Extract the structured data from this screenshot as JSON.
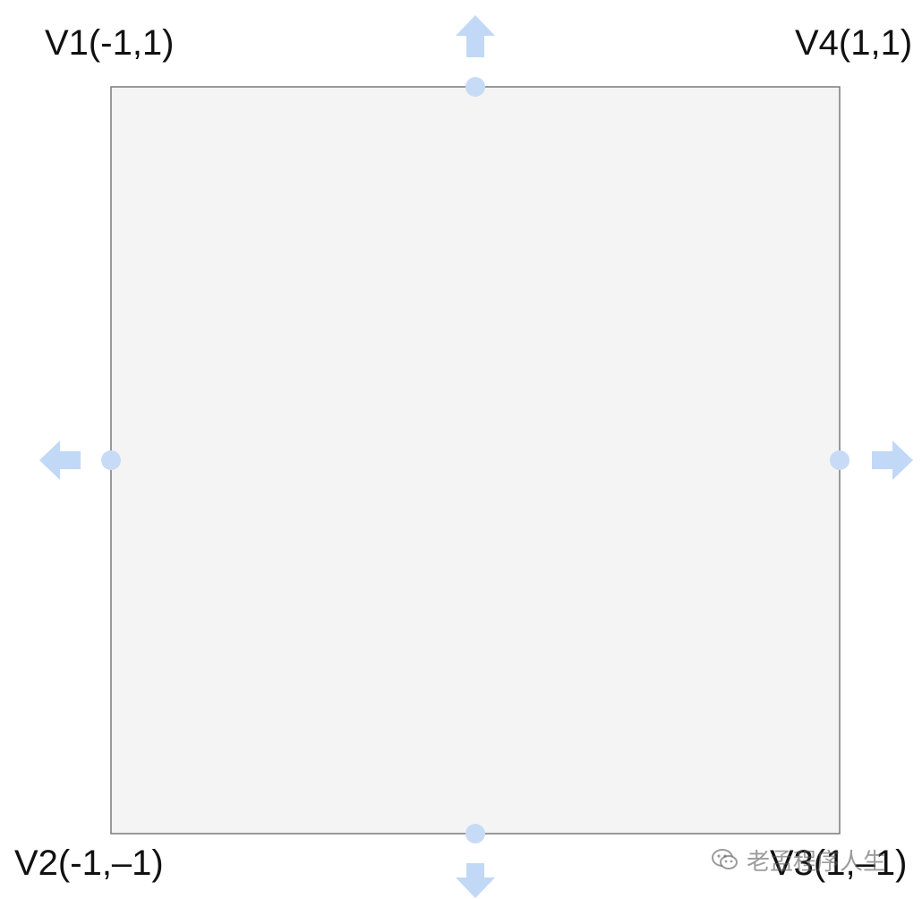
{
  "diagram": {
    "vertices": [
      {
        "id": "v1",
        "label": "V1(-1,1)"
      },
      {
        "id": "v2",
        "label": "V2(-1,–1)"
      },
      {
        "id": "v3",
        "label": "V3(1,–1)"
      },
      {
        "id": "v4",
        "label": "V4(1,1)"
      }
    ],
    "expand_directions": [
      "up",
      "down",
      "left",
      "right"
    ],
    "colors": {
      "square_fill": "#f4f4f4",
      "square_stroke": "#7a7a7a",
      "handle": "#c7dbf7",
      "arrow": "#c2d8f7",
      "text": "#111111"
    }
  },
  "watermark": {
    "text": "老孟程序人生",
    "icon": "wechat-icon"
  }
}
